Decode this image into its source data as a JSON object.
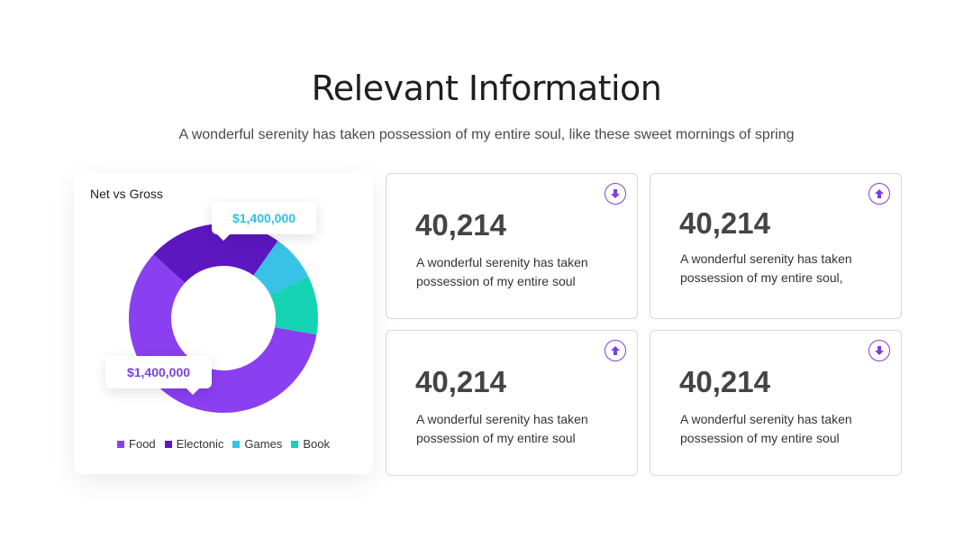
{
  "header": {
    "title": "Relevant Information",
    "subtitle": "A wonderful serenity has taken possession of my entire soul, like these sweet mornings of spring"
  },
  "chart_data": {
    "type": "pie",
    "variant": "donut",
    "title": "Net vs Gross",
    "categories": [
      "Food",
      "Electonic",
      "Games",
      "Book"
    ],
    "values": [
      59,
      23,
      8,
      10
    ],
    "colors": [
      "#8a3ff0",
      "#5c17c0",
      "#37c2e6",
      "#16d3b4"
    ],
    "annotations": [
      {
        "label": "$1,400,000",
        "target": "Games",
        "color": "#2fc0e3"
      },
      {
        "label": "$1,400,000",
        "target": "Food",
        "color": "#7b3fe0"
      }
    ],
    "legend": "bottom"
  },
  "stats": [
    {
      "value": "40,214",
      "text": "A wonderful serenity has taken possession of my entire soul",
      "icon": "arrow-down-icon"
    },
    {
      "value": "40,214",
      "text": "A wonderful serenity has taken possession of my entire soul,",
      "icon": "arrow-up-icon"
    },
    {
      "value": "40,214",
      "text": "A wonderful serenity has taken possession of my entire soul",
      "icon": "arrow-up-icon"
    },
    {
      "value": "40,214",
      "text": "A wonderful serenity has taken possession of my entire soul",
      "icon": "arrow-down-icon"
    }
  ],
  "colors": {
    "accent": "#7b3fe0"
  }
}
